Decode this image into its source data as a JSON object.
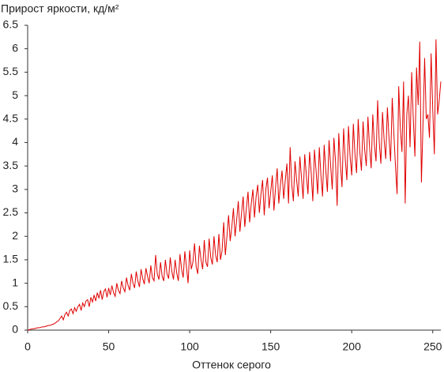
{
  "chart_data": {
    "type": "line",
    "title": "Прирост яркости, кд/м²",
    "x_label": "Оттенок серого",
    "color": "#e00000",
    "xlim": [
      0,
      255
    ],
    "xticks": [
      0,
      50,
      100,
      150,
      200,
      250
    ],
    "ylim": [
      0,
      6.5
    ],
    "yticks": [
      0,
      0.5,
      1,
      1.5,
      2,
      2.5,
      3,
      3.5,
      4,
      4.5,
      5,
      5.5,
      6,
      6.5
    ],
    "grid": false,
    "x": [
      0,
      1,
      2,
      3,
      4,
      5,
      6,
      7,
      8,
      9,
      10,
      11,
      12,
      13,
      14,
      15,
      16,
      17,
      18,
      19,
      20,
      21,
      22,
      23,
      24,
      25,
      26,
      27,
      28,
      29,
      30,
      31,
      32,
      33,
      34,
      35,
      36,
      37,
      38,
      39,
      40,
      41,
      42,
      43,
      44,
      45,
      46,
      47,
      48,
      49,
      50,
      51,
      52,
      53,
      54,
      55,
      56,
      57,
      58,
      59,
      60,
      61,
      62,
      63,
      64,
      65,
      66,
      67,
      68,
      69,
      70,
      71,
      72,
      73,
      74,
      75,
      76,
      77,
      78,
      79,
      80,
      81,
      82,
      83,
      84,
      85,
      86,
      87,
      88,
      89,
      90,
      91,
      92,
      93,
      94,
      95,
      96,
      97,
      98,
      99,
      100,
      101,
      102,
      103,
      104,
      105,
      106,
      107,
      108,
      109,
      110,
      111,
      112,
      113,
      114,
      115,
      116,
      117,
      118,
      119,
      120,
      121,
      122,
      123,
      124,
      125,
      126,
      127,
      128,
      129,
      130,
      131,
      132,
      133,
      134,
      135,
      136,
      137,
      138,
      139,
      140,
      141,
      142,
      143,
      144,
      145,
      146,
      147,
      148,
      149,
      150,
      151,
      152,
      153,
      154,
      155,
      156,
      157,
      158,
      159,
      160,
      161,
      162,
      163,
      164,
      165,
      166,
      167,
      168,
      169,
      170,
      171,
      172,
      173,
      174,
      175,
      176,
      177,
      178,
      179,
      180,
      181,
      182,
      183,
      184,
      185,
      186,
      187,
      188,
      189,
      190,
      191,
      192,
      193,
      194,
      195,
      196,
      197,
      198,
      199,
      200,
      201,
      202,
      203,
      204,
      205,
      206,
      207,
      208,
      209,
      210,
      211,
      212,
      213,
      214,
      215,
      216,
      217,
      218,
      219,
      220,
      221,
      222,
      223,
      224,
      225,
      226,
      227,
      228,
      229,
      230,
      231,
      232,
      233,
      234,
      235,
      236,
      237,
      238,
      239,
      240,
      241,
      242,
      243,
      244,
      245,
      246,
      247,
      248,
      249,
      250,
      251,
      252,
      253,
      254,
      255
    ],
    "values": [
      0,
      0.01,
      0.02,
      0.03,
      0.03,
      0.04,
      0.05,
      0.05,
      0.06,
      0.07,
      0.07,
      0.08,
      0.09,
      0.1,
      0.1,
      0.12,
      0.13,
      0.15,
      0.18,
      0.2,
      0.25,
      0.3,
      0.22,
      0.33,
      0.38,
      0.3,
      0.42,
      0.45,
      0.35,
      0.48,
      0.4,
      0.5,
      0.55,
      0.42,
      0.58,
      0.5,
      0.62,
      0.65,
      0.5,
      0.7,
      0.6,
      0.75,
      0.62,
      0.8,
      0.68,
      0.85,
      0.65,
      0.82,
      0.88,
      0.7,
      0.9,
      0.75,
      0.95,
      0.8,
      0.72,
      1.0,
      0.85,
      0.78,
      1.05,
      0.9,
      0.82,
      1.12,
      0.95,
      0.85,
      1.2,
      1.0,
      0.9,
      1.25,
      1.05,
      0.92,
      1.3,
      1.1,
      0.98,
      1.32,
      1.15,
      1.0,
      1.38,
      1.12,
      1.05,
      1.6,
      1.2,
      1.08,
      1.45,
      1.15,
      1.05,
      1.5,
      1.2,
      1.1,
      1.55,
      1.25,
      1.08,
      1.5,
      1.22,
      1.05,
      1.62,
      1.3,
      1.12,
      1.68,
      1.35,
      1.0,
      1.7,
      1.3,
      1.45,
      1.85,
      1.35,
      1.2,
      1.8,
      1.5,
      1.3,
      1.92,
      1.45,
      1.35,
      1.95,
      1.55,
      1.4,
      2.0,
      1.6,
      1.45,
      2.05,
      1.5,
      1.7,
      2.3,
      1.6,
      2.0,
      2.45,
      1.9,
      2.2,
      2.6,
      2.0,
      2.35,
      2.75,
      2.1,
      2.5,
      2.85,
      2.2,
      2.6,
      2.95,
      2.3,
      2.7,
      3.0,
      2.4,
      2.85,
      3.1,
      2.5,
      2.9,
      3.2,
      2.45,
      3.0,
      3.25,
      2.6,
      2.95,
      3.3,
      2.55,
      3.05,
      3.45,
      2.7,
      3.1,
      3.4,
      2.8,
      3.2,
      3.55,
      2.7,
      3.9,
      3.1,
      2.75,
      3.6,
      3.2,
      2.85,
      3.7,
      3.25,
      2.8,
      3.75,
      3.3,
      2.9,
      3.8,
      3.35,
      2.75,
      3.85,
      3.4,
      2.9,
      3.9,
      3.3,
      2.85,
      3.95,
      3.4,
      2.95,
      4.05,
      3.5,
      3.0,
      4.1,
      3.6,
      2.65,
      4.2,
      3.55,
      3.05,
      4.3,
      3.65,
      3.2,
      4.35,
      3.7,
      3.3,
      4.4,
      3.75,
      3.35,
      4.5,
      3.8,
      3.4,
      4.45,
      3.85,
      3.5,
      4.55,
      3.9,
      3.45,
      4.6,
      3.95,
      3.6,
      4.9,
      4.0,
      3.55,
      4.65,
      4.05,
      3.65,
      4.75,
      4.1,
      3.6,
      4.95,
      4.2,
      3.5,
      2.9,
      5.2,
      4.3,
      3.8,
      5.3,
      2.7,
      4.6,
      5.0,
      3.9,
      5.5,
      4.5,
      3.7,
      5.6,
      4.8,
      6.15,
      3.15,
      4.4,
      5.8,
      4.5,
      4.6,
      4.1,
      5.9,
      4.7,
      3.75,
      6.2,
      4.6,
      4.9,
      5.3
    ]
  }
}
